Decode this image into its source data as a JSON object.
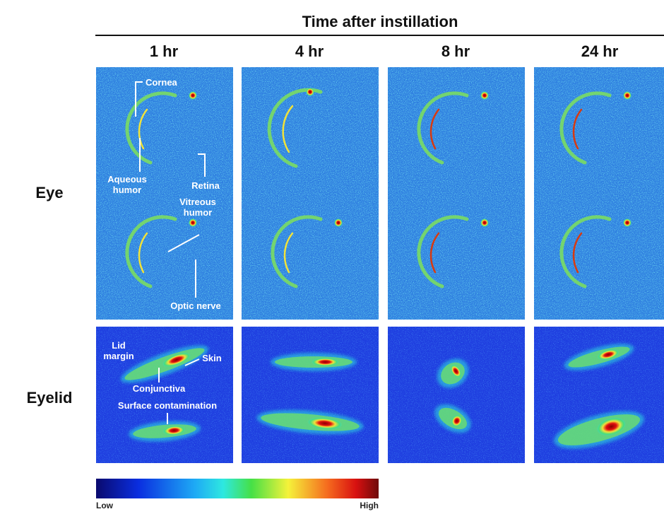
{
  "header": {
    "title": "Time after instillation",
    "columns": [
      "1 hr",
      "4 hr",
      "8 hr",
      "24 hr"
    ]
  },
  "rows": [
    "Eye",
    "Eyelid"
  ],
  "annotations": {
    "eye": {
      "cornea": "Cornea",
      "aqueous_humor": [
        "Aqueous",
        "humor"
      ],
      "retina": "Retina",
      "vitreous_humor": [
        "Vitreous",
        "humor"
      ],
      "optic_nerve": "Optic nerve"
    },
    "eyelid": {
      "lid_margin": [
        "Lid",
        "margin"
      ],
      "skin": "Skin",
      "conjunctiva": "Conjunctiva",
      "surface_contamination": "Surface contamination"
    }
  },
  "colorbar": {
    "low": "Low",
    "high": "High"
  }
}
